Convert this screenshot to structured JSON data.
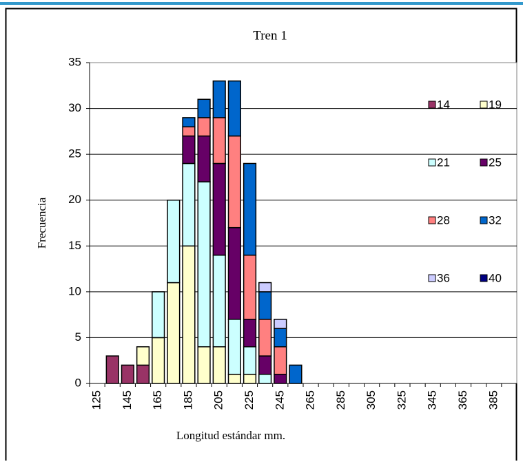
{
  "chart_data": {
    "type": "stacked_bar",
    "title": "Tren 1",
    "x_label": "Longitud estándar mm.",
    "y_label": "Frecuencia",
    "categories": [
      "125",
      null,
      "145",
      null,
      "165",
      null,
      "185",
      null,
      "205",
      null,
      "225",
      null,
      "245",
      null,
      "265",
      null,
      "285",
      null,
      "305",
      null,
      "325",
      null,
      "345",
      null,
      "365",
      null,
      "385",
      null
    ],
    "series": [
      {
        "name": "14",
        "color": "#993366",
        "values": [
          0,
          3,
          2,
          2,
          0,
          0,
          0,
          0,
          0,
          0,
          0,
          0,
          0,
          0,
          0,
          0,
          0,
          0,
          0,
          0,
          0,
          0,
          0,
          0,
          0,
          0,
          0,
          0
        ]
      },
      {
        "name": "19",
        "color": "#FFFFCC",
        "values": [
          0,
          0,
          0,
          2,
          5,
          11,
          15,
          4,
          4,
          1,
          1,
          0,
          0,
          0,
          0,
          0,
          0,
          0,
          0,
          0,
          0,
          0,
          0,
          0,
          0,
          0,
          0,
          0
        ]
      },
      {
        "name": "21",
        "color": "#CCFFFF",
        "values": [
          0,
          0,
          0,
          0,
          5,
          9,
          9,
          18,
          10,
          6,
          3,
          1,
          0,
          0,
          0,
          0,
          0,
          0,
          0,
          0,
          0,
          0,
          0,
          0,
          0,
          0,
          0,
          0
        ]
      },
      {
        "name": "25",
        "color": "#660066",
        "values": [
          0,
          0,
          0,
          0,
          0,
          0,
          3,
          5,
          10,
          10,
          3,
          2,
          1,
          0,
          0,
          0,
          0,
          0,
          0,
          0,
          0,
          0,
          0,
          0,
          0,
          0,
          0,
          0
        ]
      },
      {
        "name": "28",
        "color": "#FF8080",
        "values": [
          0,
          0,
          0,
          0,
          0,
          0,
          1,
          2,
          5,
          10,
          7,
          4,
          3,
          0,
          0,
          0,
          0,
          0,
          0,
          0,
          0,
          0,
          0,
          0,
          0,
          0,
          0,
          0
        ]
      },
      {
        "name": "32",
        "color": "#0066CC",
        "values": [
          0,
          0,
          0,
          0,
          0,
          0,
          1,
          2,
          4,
          6,
          10,
          3,
          2,
          2,
          0,
          0,
          0,
          0,
          0,
          0,
          0,
          0,
          0,
          0,
          0,
          0,
          0,
          0
        ]
      },
      {
        "name": "36",
        "color": "#CCCCFF",
        "values": [
          0,
          0,
          0,
          0,
          0,
          0,
          0,
          0,
          0,
          0,
          0,
          1,
          1,
          0,
          0,
          0,
          0,
          0,
          0,
          0,
          0,
          0,
          0,
          0,
          0,
          0,
          0,
          0
        ]
      },
      {
        "name": "40",
        "color": "#000080",
        "values": [
          0,
          0,
          0,
          0,
          0,
          0,
          0,
          0,
          0,
          0,
          0,
          0,
          0,
          0,
          0,
          0,
          0,
          0,
          0,
          0,
          0,
          0,
          0,
          0,
          0,
          0,
          0,
          0
        ]
      }
    ],
    "ylim": [
      0,
      35
    ],
    "yticks": [
      0,
      5,
      10,
      15,
      20,
      25,
      30,
      35
    ],
    "grid": true,
    "legend": "right"
  }
}
